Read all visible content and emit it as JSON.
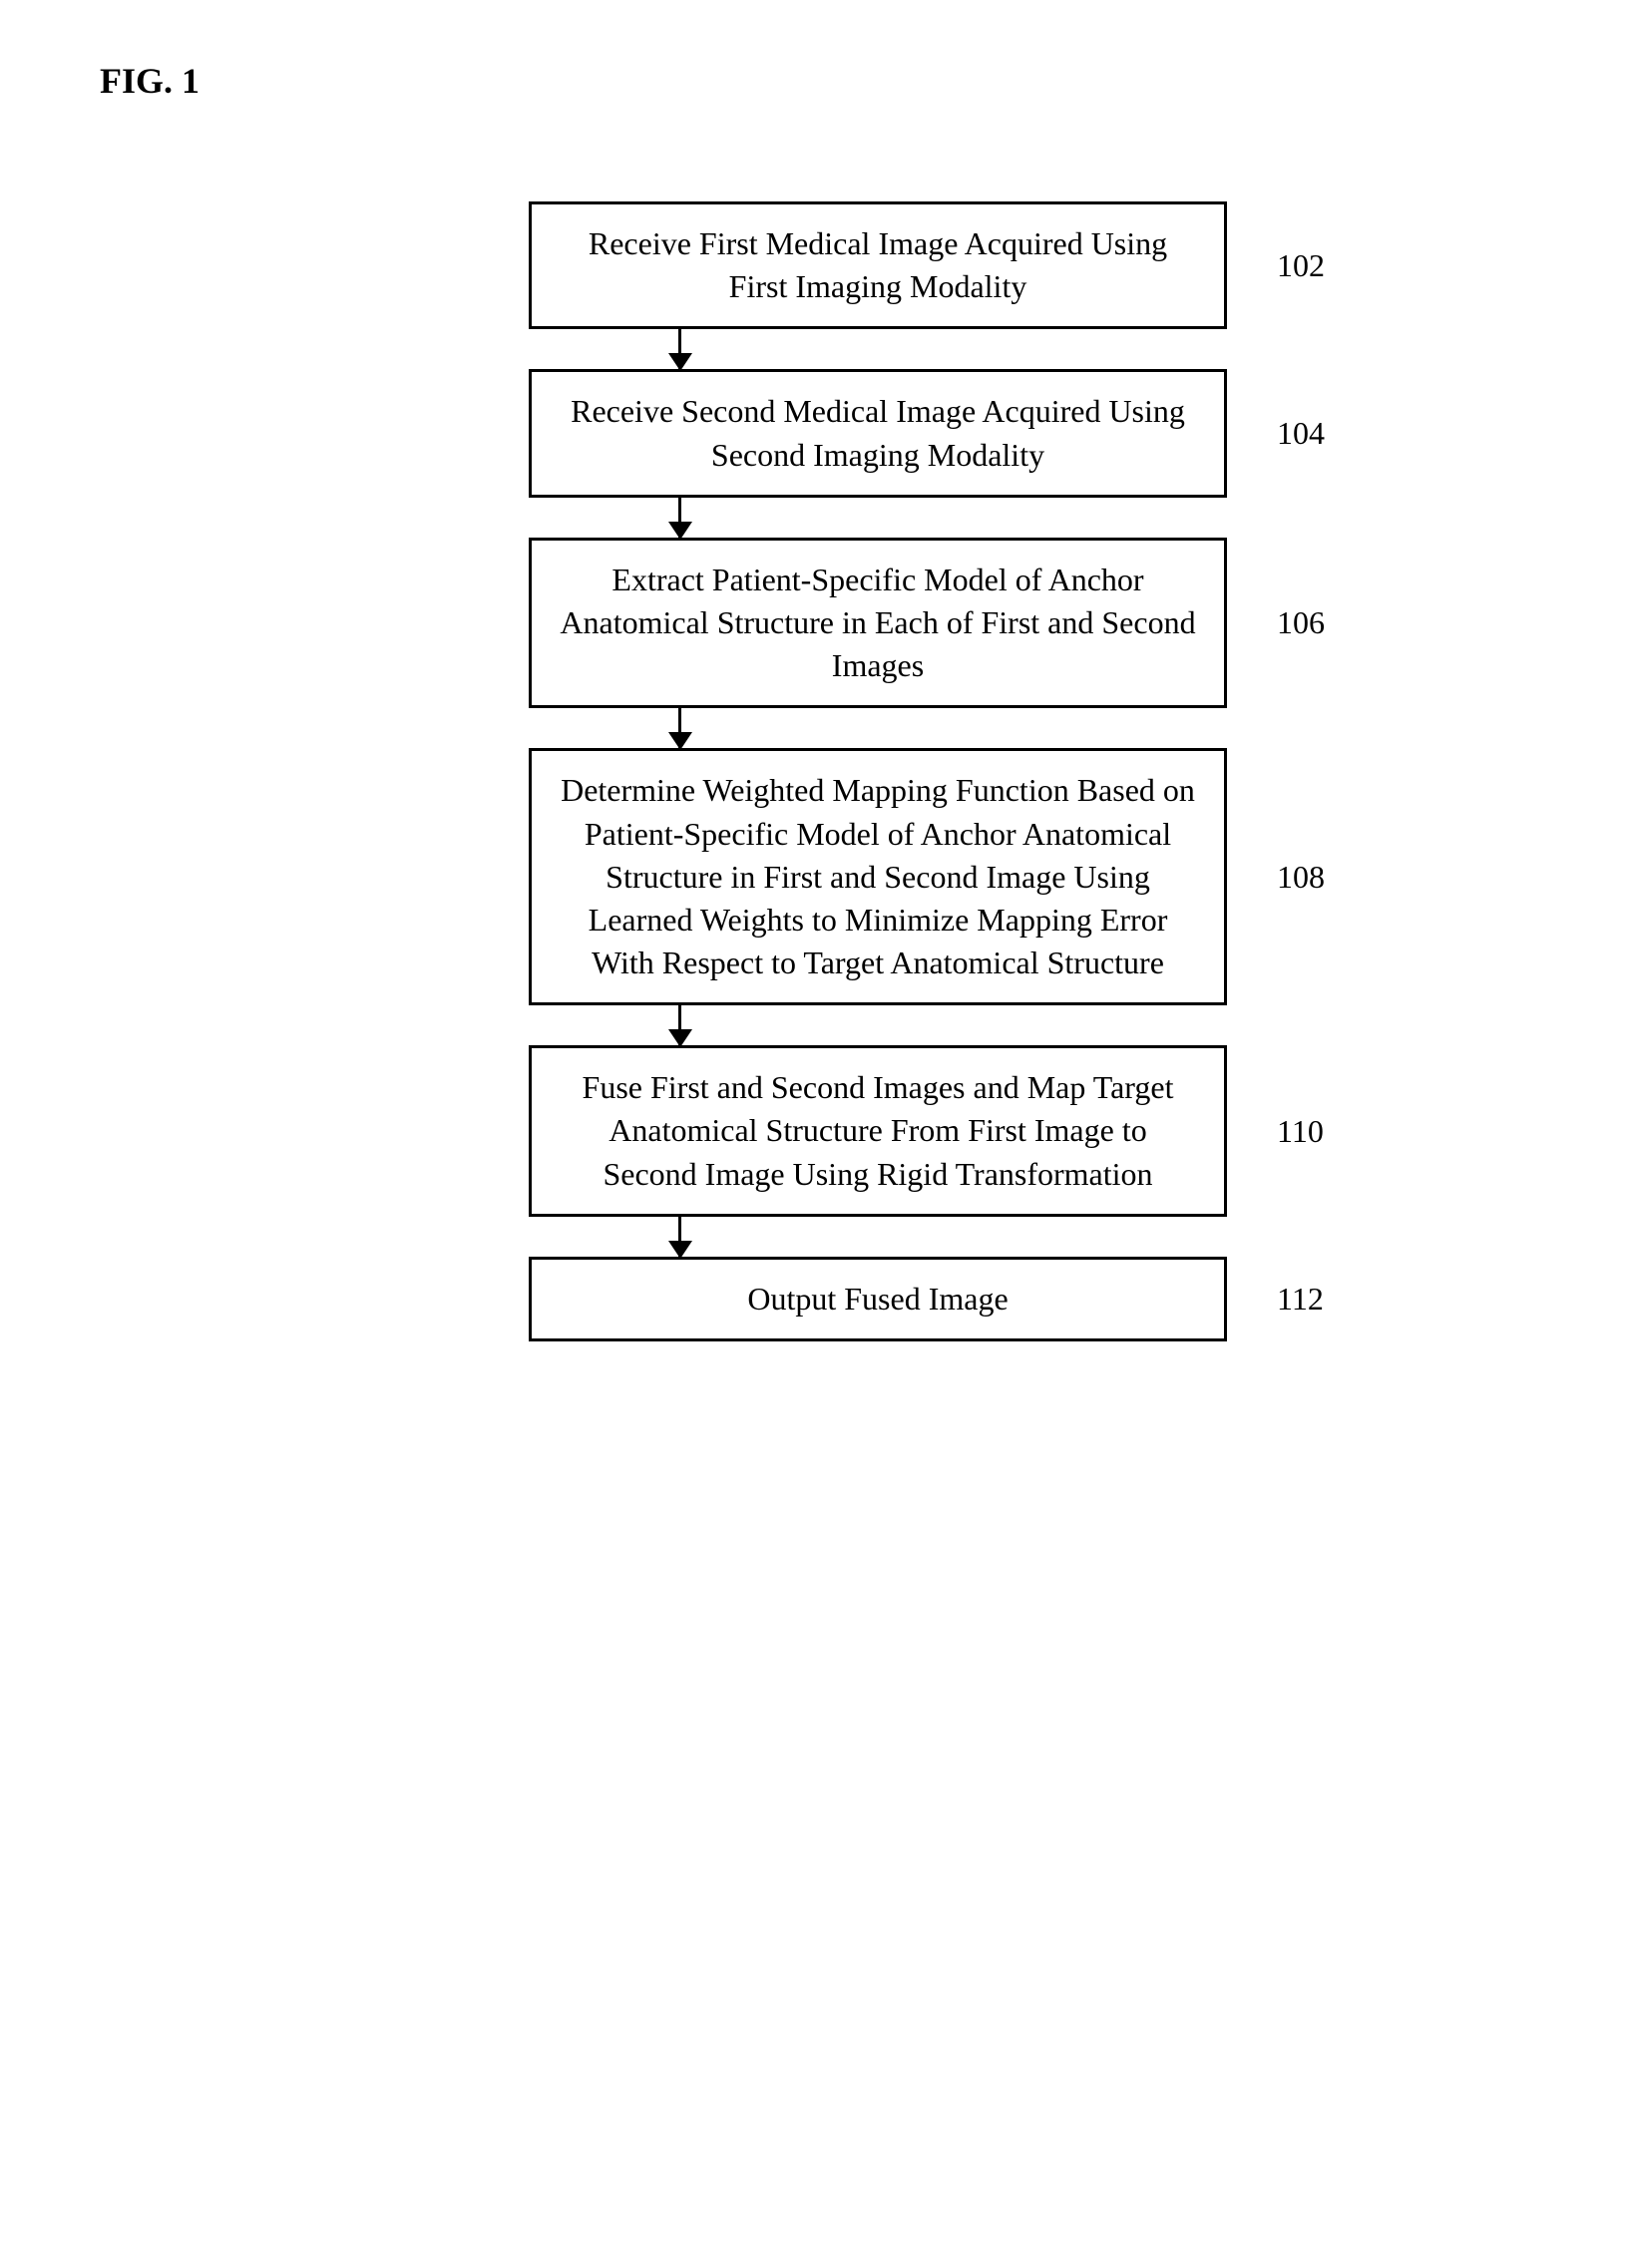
{
  "figure_title": "FIG. 1",
  "boxes": [
    {
      "text": "Receive First Medical Image Acquired Using First Imaging Modality",
      "label": "102"
    },
    {
      "text": "Receive Second Medical Image Acquired Using Second Imaging Modality",
      "label": "104"
    },
    {
      "text": "Extract Patient-Specific Model of Anchor Anatomical Structure in Each of First and Second Images",
      "label": "106"
    },
    {
      "text": "Determine Weighted Mapping Function Based on Patient-Specific Model of Anchor Anatomical Structure in First and Second Image Using Learned Weights to Minimize Mapping Error With Respect to Target Anatomical Structure",
      "label": "108"
    },
    {
      "text": "Fuse First and Second Images and Map Target Anatomical Structure From First Image to Second Image Using Rigid Transformation",
      "label": "110"
    },
    {
      "text": "Output Fused Image",
      "label": "112"
    }
  ]
}
